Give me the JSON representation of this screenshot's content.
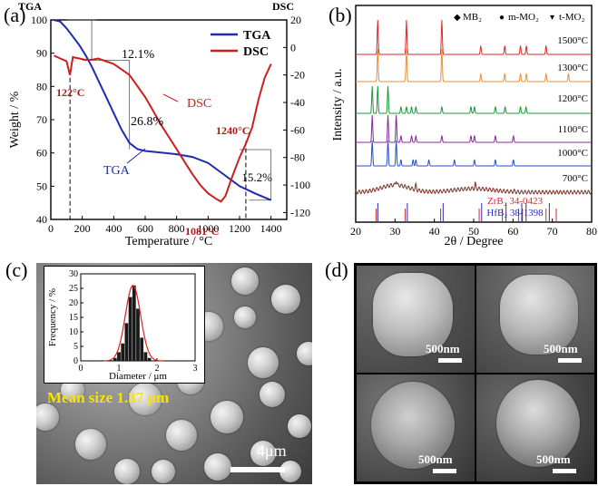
{
  "panels": {
    "a": "(a)",
    "b": "(b)",
    "c": "(c)",
    "d": "(d)"
  },
  "chart_data": [
    {
      "panel": "a",
      "type": "line",
      "title_left": "TGA",
      "title_right": "DSC",
      "xlabel": "Temperature / °C",
      "ylabel": "Weight / %",
      "xlim": [
        0,
        1500
      ],
      "ylim_left": [
        40,
        100
      ],
      "ylim_right": [
        -125,
        20
      ],
      "xticks": [
        0,
        200,
        400,
        600,
        800,
        1000,
        1200,
        1400
      ],
      "yticks_left": [
        40,
        50,
        60,
        70,
        80,
        90,
        100
      ],
      "yticks_right": [
        -120,
        -100,
        -80,
        -60,
        -40,
        -20,
        0,
        20
      ],
      "legend": [
        "TGA",
        "DSC"
      ],
      "legend_position": "top-right",
      "colors": {
        "TGA": "#1f2bb0",
        "DSC": "#cc1f1f"
      },
      "series": [
        {
          "name": "TGA",
          "axis": "left",
          "x": [
            20,
            60,
            100,
            140,
            180,
            220,
            260,
            300,
            350,
            400,
            450,
            500,
            550,
            600,
            700,
            800,
            900,
            1000,
            1100,
            1200,
            1300,
            1400
          ],
          "y": [
            100,
            99.5,
            97.5,
            95,
            92.5,
            89.5,
            86,
            82,
            77,
            72,
            67,
            63,
            61.2,
            60.6,
            60.1,
            59.6,
            58.8,
            57,
            53.5,
            50,
            47.8,
            45.8
          ]
        },
        {
          "name": "DSC",
          "axis": "right",
          "x": [
            20,
            60,
            100,
            122,
            140,
            180,
            220,
            260,
            300,
            350,
            400,
            450,
            500,
            550,
            600,
            650,
            700,
            750,
            800,
            850,
            900,
            950,
            1000,
            1050,
            1081,
            1110,
            1150,
            1200,
            1240,
            1280,
            1320,
            1360,
            1400
          ],
          "y": [
            -6,
            -8,
            -10,
            -20,
            -7,
            -8,
            -9,
            -9,
            -8,
            -10,
            -12,
            -16,
            -20,
            -28,
            -36,
            -46,
            -56,
            -65,
            -74,
            -83,
            -92,
            -100,
            -106,
            -110,
            -112,
            -108,
            -95,
            -80,
            -70,
            -58,
            -38,
            -22,
            -12
          ]
        }
      ],
      "annotations": [
        {
          "text": "12.1%",
          "kind": "mass_loss_step"
        },
        {
          "text": "26.8%",
          "kind": "mass_loss_step"
        },
        {
          "text": "15.2%",
          "kind": "mass_loss_step"
        },
        {
          "text": "122°C",
          "kind": "peak",
          "color": "#b01616"
        },
        {
          "text": "1081°C",
          "kind": "peak",
          "color": "#b01616"
        },
        {
          "text": "1240°C",
          "kind": "peak",
          "color": "#b01616"
        },
        {
          "text": "DSC",
          "kind": "curve_label",
          "color": "#cc1f1f"
        },
        {
          "text": "TGA",
          "kind": "curve_label",
          "color": "#1f2bb0"
        }
      ]
    },
    {
      "panel": "b",
      "type": "line",
      "xlabel": "2θ / Degree",
      "ylabel": "Intensity / a.u.",
      "xlim": [
        20,
        80
      ],
      "xticks": [
        20,
        30,
        40,
        50,
        60,
        70,
        80
      ],
      "legend": [
        "MB₂",
        "m-MO₂",
        "t-MO₂"
      ],
      "legend_symbols": [
        "◆",
        "●",
        "▾"
      ],
      "legend_position": "top-right",
      "series": [
        {
          "name": "1500°C",
          "color": "#e0262a",
          "peaks": [
            25.6,
            32.9,
            41.9,
            51.8,
            57.9,
            61.9,
            63.4,
            68.4
          ]
        },
        {
          "name": "1300°C",
          "color": "#ef8e2f",
          "peaks": [
            25.6,
            32.9,
            41.9,
            51.8,
            57.9,
            61.9,
            63.4,
            68.4,
            74.1
          ]
        },
        {
          "name": "1200°C",
          "color": "#1a9a3c",
          "peaks": [
            24.2,
            25.6,
            28.2,
            31.5,
            32.9,
            34.2,
            35.3,
            41.9,
            49.3,
            50.2,
            55.5,
            58.0,
            61.9,
            63.3
          ]
        },
        {
          "name": "1100°C",
          "color": "#8a2aa0",
          "peaks": [
            24.2,
            28.2,
            30.3,
            31.5,
            34.2,
            35.3,
            41.9,
            49.3,
            50.2,
            55.5,
            60.1
          ]
        },
        {
          "name": "1000°C",
          "color": "#2652c4",
          "peaks": [
            24.2,
            28.2,
            30.3,
            31.5,
            34.6,
            35.3,
            38.6,
            45.1,
            50.2,
            55.5,
            60.1
          ]
        },
        {
          "name": "700°C",
          "color": "#7a3228",
          "peaks": [
            30.3,
            35.3,
            50.4,
            60.2
          ]
        }
      ],
      "reference_patterns": [
        {
          "name": "ZrB₂ 34-0423",
          "color": "#d02a2a",
          "peaks": [
            25.2,
            32.6,
            41.6,
            51.4,
            57.3,
            61.4,
            62.4,
            68.4,
            71.0
          ]
        },
        {
          "name": "HfB₂ 38-1398",
          "color": "#2a2ab8",
          "peaks": [
            25.4,
            32.9,
            42.0,
            51.8,
            58.0,
            62.0,
            63.1,
            69.0
          ]
        }
      ]
    },
    {
      "panel": "c-inset",
      "type": "bar",
      "xlabel": "Diameter / μm",
      "ylabel": "Frequency / %",
      "xlim": [
        0,
        3
      ],
      "ylim": [
        0,
        30
      ],
      "xticks": [
        0,
        1,
        2,
        3
      ],
      "yticks": [
        0,
        5,
        10,
        15,
        20,
        25,
        30
      ],
      "bar_color": "#1a1a1a",
      "fit_color": "#e02020",
      "bins": [
        0.9,
        1.0,
        1.1,
        1.2,
        1.3,
        1.4,
        1.5,
        1.6,
        1.7,
        1.8
      ],
      "values": [
        1,
        3,
        6,
        13,
        22,
        26,
        18,
        8,
        3,
        1
      ]
    }
  ],
  "sem": {
    "mean_label": "Mean size 1.37 μm",
    "scale_c": "4μm",
    "scale_d": [
      "500nm",
      "500nm",
      "500nm",
      "500nm"
    ]
  }
}
